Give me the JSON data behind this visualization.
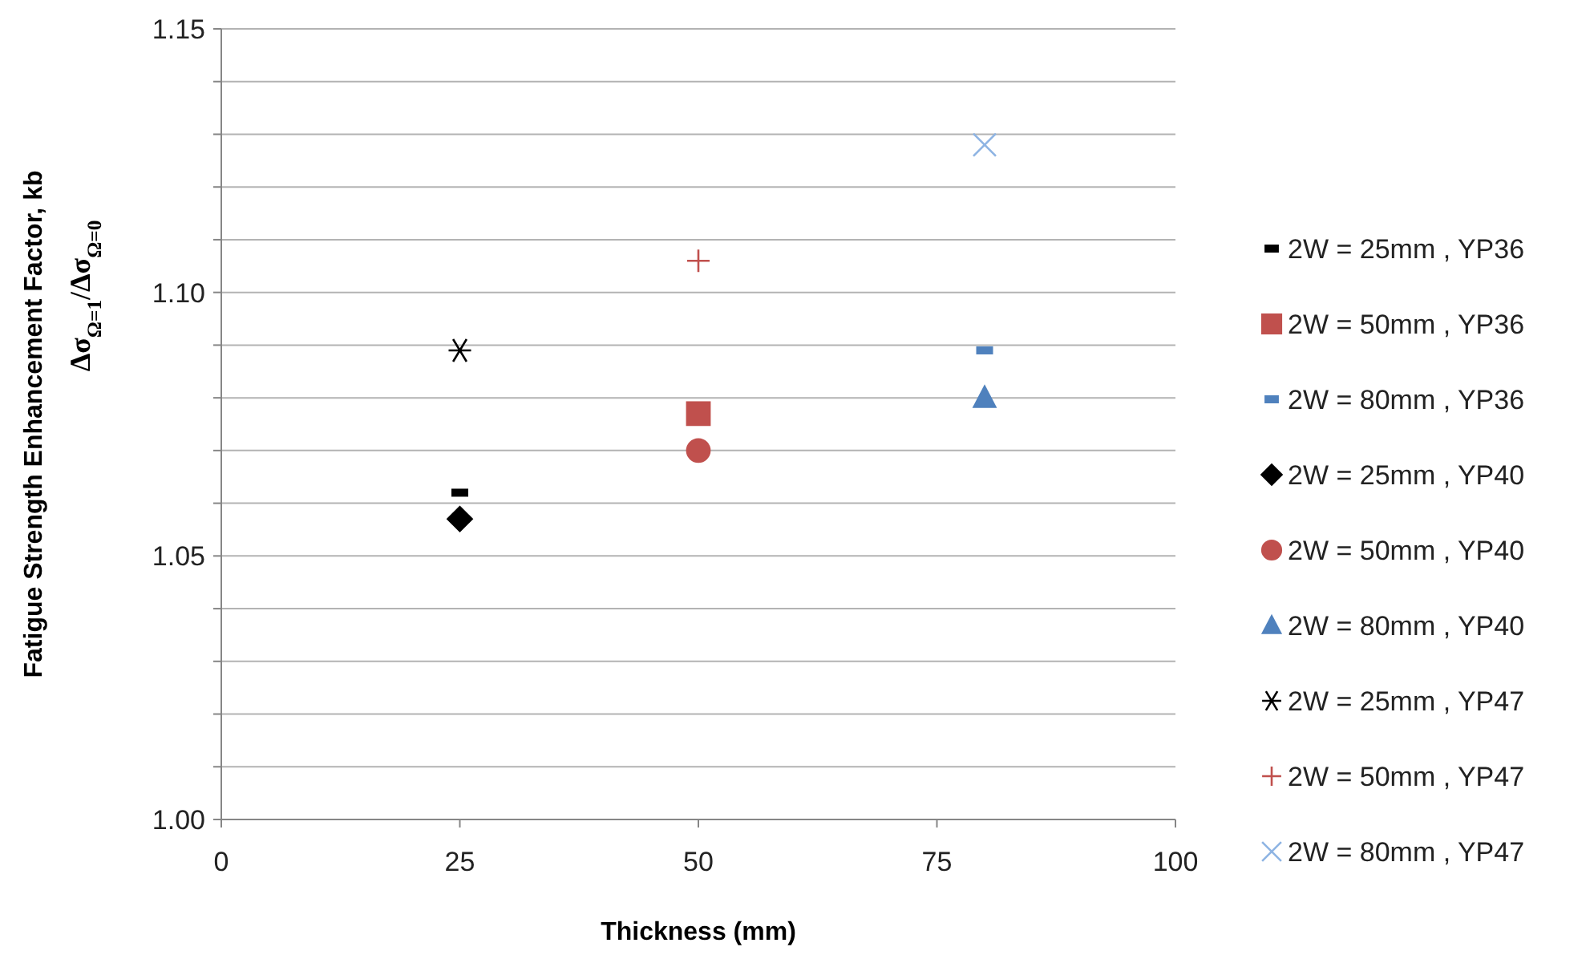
{
  "chart_data": {
    "type": "scatter",
    "xlabel": "Thickness (mm)",
    "ylabel": "Fatigue Strength Enhancement Factor, kb\nΔσ$_{Ω=1}$/Δσ$_{Ω=0}$",
    "xlim": [
      0,
      100
    ],
    "xticks": [
      0,
      25,
      50,
      75,
      100
    ],
    "ylim": [
      1.0,
      1.15
    ],
    "yticks": [
      {
        "value": 1.0,
        "label": "1.00"
      },
      {
        "value": 1.01,
        "label": null
      },
      {
        "value": 1.02,
        "label": null
      },
      {
        "value": 1.03,
        "label": null
      },
      {
        "value": 1.04,
        "label": null
      },
      1.05,
      {
        "value": 1.06,
        "label": null
      },
      {
        "value": 1.07,
        "label": null
      },
      {
        "value": 1.08,
        "label": null
      },
      {
        "value": 1.09,
        "label": null
      },
      {
        "value": 1.1,
        "label": "1.10"
      },
      {
        "value": 1.11,
        "label": null
      },
      {
        "value": 1.12,
        "label": null
      },
      {
        "value": 1.13,
        "label": null
      },
      {
        "value": 1.14,
        "label": null
      },
      1.15
    ],
    "grid": "y",
    "legend": "right",
    "series": [
      {
        "name": "2W = 25mm , YP36",
        "color": "#000000",
        "x": [
          25
        ],
        "values": [
          1.062
        ]
      },
      {
        "name": "2W = 50mm , YP36",
        "color": "#c0504d",
        "marker": "square",
        "x": [
          50
        ],
        "values": [
          1.077
        ]
      },
      {
        "name": "2W = 80mm , YP36",
        "color": "#4f81bd",
        "x": [
          80
        ],
        "values": [
          1.089
        ]
      },
      {
        "name": "2W = 25mm , YP40",
        "color": "#000000",
        "marker": "diamond",
        "x": [
          25
        ],
        "values": [
          1.057
        ]
      },
      {
        "name": "2W = 50mm , YP40",
        "color": "#c0504d",
        "marker": "circle",
        "x": [
          50
        ],
        "values": [
          1.07
        ]
      },
      {
        "name": "2W = 80mm , YP40",
        "color": "#4f81bd",
        "marker": "triangle",
        "x": [
          80
        ],
        "values": [
          1.08
        ]
      },
      {
        "name": "2W = 25mm , YP47",
        "color": "#000000",
        "marker": "cross",
        "x": [
          25
        ],
        "values": [
          1.089
        ]
      },
      {
        "name": "2W = 50mm , YP47",
        "color": "#c0504d",
        "marker": "plus",
        "x": [
          50
        ],
        "values": [
          1.106
        ]
      },
      {
        "name": "2W = 80mm , YP47",
        "color": "#8eb4e3",
        "marker": "x",
        "x": [
          80
        ],
        "values": [
          1.128
        ]
      }
    ]
  }
}
